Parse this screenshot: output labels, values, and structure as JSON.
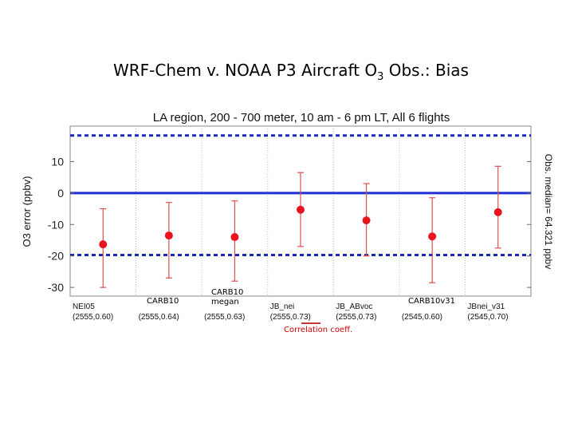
{
  "slide": {
    "title_main": "WRF-Chem v. NOAA P3 Aircraft O",
    "title_sub": "3",
    "title_tail": " Obs.: Bias"
  },
  "annotations": {
    "carb10": "CARB10",
    "carb10_megan_line1": "CARB10",
    "carb10_megan_line2": "megan",
    "carb10v31": "CARB10v31",
    "corr_label": "Correlation coeff."
  },
  "chart_data": {
    "type": "scatter",
    "title": "LA region, 200 - 700 meter, 10 am - 6 pm LT,  All 6 flights",
    "ylabel": "O3 error (ppbv)",
    "right_label": "Obs. median= 64.321 ppbv",
    "ylim": [
      -32,
      20
    ],
    "yticks": [
      10,
      0,
      -10,
      -20,
      -30
    ],
    "ref_lines": {
      "solid": 0,
      "dashed": [
        18.3,
        -19.7
      ]
    },
    "categories": [
      "NEI05",
      "",
      "",
      "JB_nei",
      "JB_ABvoc",
      "",
      "JBnei_v31"
    ],
    "cat_stats": [
      "(2555,0.60)",
      "(2555,0.64)",
      "(2555,0.63)",
      "(2555,0.73)",
      "(2555,0.73)",
      "(2545,0.60)",
      "(2545,0.70)"
    ],
    "series": [
      {
        "name": "Bias",
        "values": [
          -16.3,
          -13.5,
          -14.0,
          -5.3,
          -8.7,
          -13.8,
          -6.1
        ],
        "err_low": [
          -30,
          -27,
          -28,
          -17,
          -20,
          -28.5,
          -17.5
        ],
        "err_high": [
          -5,
          -3,
          -2.5,
          6.5,
          3,
          -1.5,
          8.5
        ]
      }
    ],
    "colors": {
      "solid": "#1f2fd0",
      "dashed": "#1a2ab8",
      "points": "#e8141e",
      "errorbars": "#e05050"
    }
  }
}
